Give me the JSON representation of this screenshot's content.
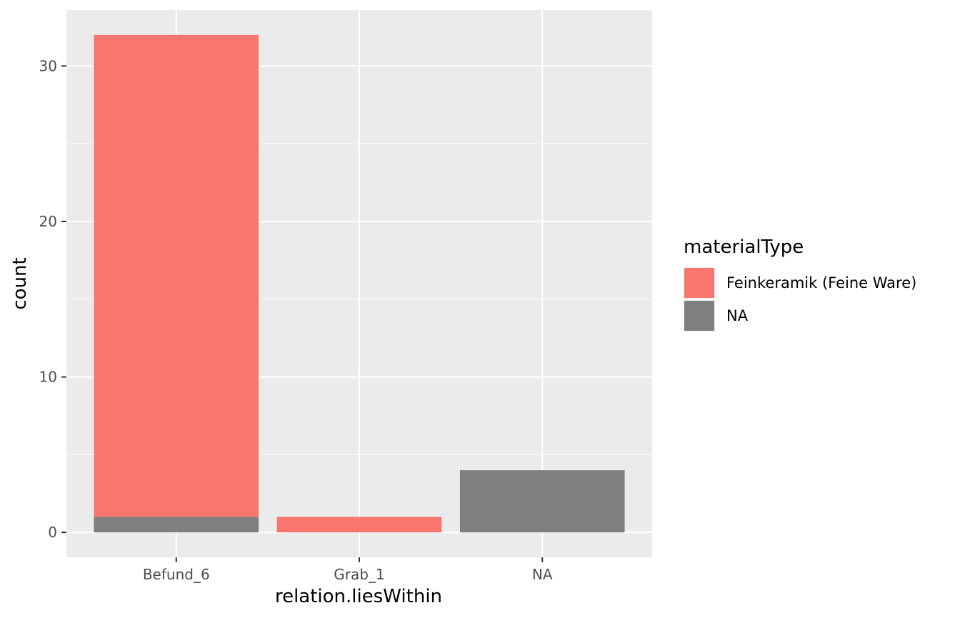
{
  "chart_data": {
    "type": "bar",
    "stacked": true,
    "categories": [
      "Befund_6",
      "Grab_1",
      "NA"
    ],
    "series": [
      {
        "name": "NA",
        "values": [
          1,
          0,
          4
        ],
        "color": "#7f7f7f"
      },
      {
        "name": "Feinkeramik (Feine Ware)",
        "values": [
          31,
          1,
          0
        ],
        "color": "#f8766d"
      }
    ],
    "xlabel": "relation.liesWithin",
    "ylabel": "count",
    "ylim": [
      -1.6,
      33.6
    ],
    "yticks": [
      0,
      10,
      20,
      30
    ],
    "grid": true,
    "legend": {
      "title": "materialType",
      "position": "right",
      "entries": [
        {
          "label": "Feinkeramik (Feine Ware)",
          "color": "#f8766d"
        },
        {
          "label": "NA",
          "color": "#7f7f7f"
        }
      ]
    },
    "panel_background": "#ebebeb",
    "grid_color": "#ffffff"
  }
}
